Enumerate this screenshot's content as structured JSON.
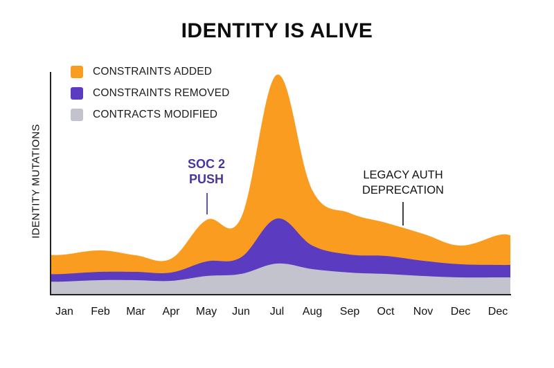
{
  "title": "IDENTITY IS ALIVE",
  "legend": [
    {
      "label": "CONSTRAINTS ADDED",
      "color": "#F99C1F"
    },
    {
      "label": "CONSTRAINTS REMOVED",
      "color": "#5B3BBF"
    },
    {
      "label": "CONTRACTS MODIFIED",
      "color": "#C3C3CD"
    }
  ],
  "annotations": [
    {
      "text_line1": "SOC 2",
      "text_line2": "PUSH",
      "x_category": "May",
      "color": "#4A35A0"
    },
    {
      "text_line1": "LEGACY AUTH",
      "text_line2": "DEPRECATION",
      "x_category": "Oct-Nov",
      "color": "#111111"
    }
  ],
  "chart_data": {
    "type": "area",
    "stacked": true,
    "title": "IDENTITY IS ALIVE",
    "xlabel": "",
    "ylabel": "IDENTITY MUTATIONS",
    "categories": [
      "Jan",
      "Feb",
      "Mar",
      "Apr",
      "May",
      "Jun",
      "Jul",
      "Aug",
      "Sep",
      "Oct",
      "Nov",
      "Dec",
      "Dec"
    ],
    "series": [
      {
        "name": "CONTRACTS MODIFIED",
        "color": "#C3C3CD",
        "values": [
          18,
          20,
          20,
          19,
          26,
          29,
          44,
          36,
          31,
          29,
          26,
          24,
          24
        ]
      },
      {
        "name": "CONSTRAINTS REMOVED",
        "color": "#5B3BBF",
        "values": [
          11,
          12,
          12,
          12,
          21,
          24,
          65,
          34,
          26,
          26,
          22,
          19,
          18
        ]
      },
      {
        "name": "CONSTRAINTS ADDED",
        "color": "#F99C1F",
        "values": [
          28,
          31,
          24,
          20,
          60,
          57,
          208,
          80,
          60,
          48,
          39,
          27,
          43
        ]
      }
    ],
    "ylim": [
      0,
      325
    ],
    "y_ticks_shown": false,
    "grid": false,
    "legend_position": "top-left"
  },
  "axis": {
    "xticks": [
      "Jan",
      "Feb",
      "Mar",
      "Apr",
      "May",
      "Jun",
      "Jul",
      "Aug",
      "Sep",
      "Oct",
      "Nov",
      "Dec",
      "Dec"
    ]
  }
}
